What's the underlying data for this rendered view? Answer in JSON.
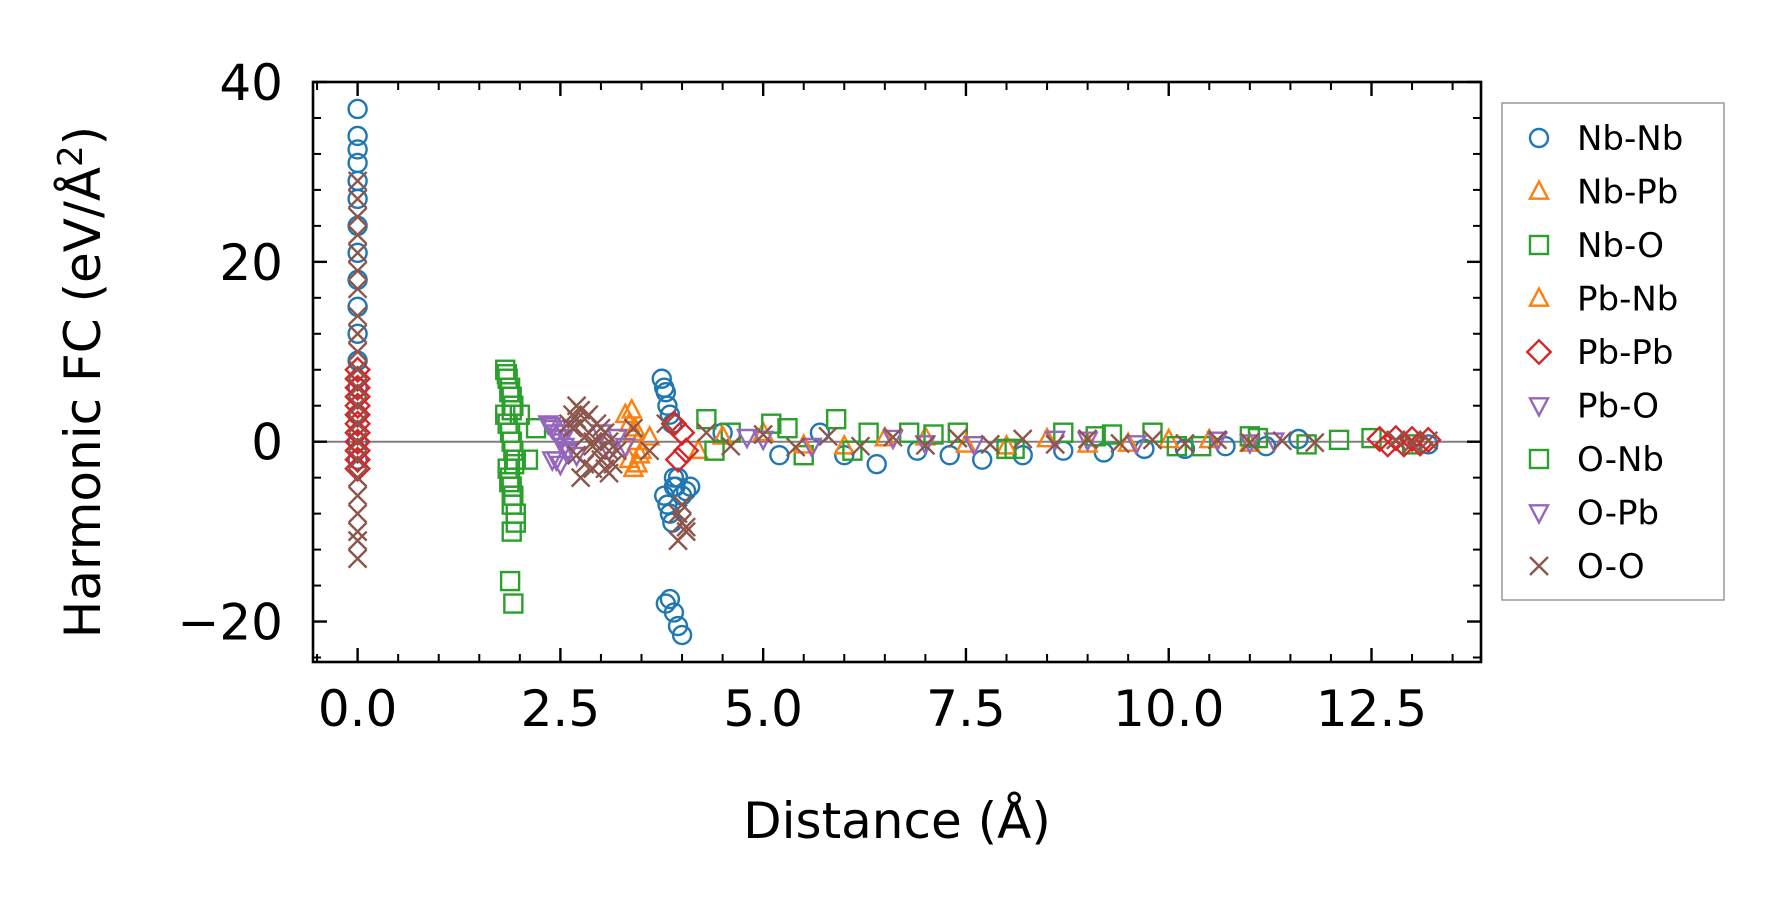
{
  "chart_data": {
    "type": "scatter",
    "title": "",
    "xlabel": "Distance (Å)",
    "ylabel": "Harmonic FC (eV/Å²)",
    "ylabel_base": "Harmonic FC (eV/Å",
    "ylabel_sup": "2",
    "ylabel_close": ")",
    "xlim": [
      -0.55,
      13.85
    ],
    "ylim": [
      -24.5,
      40.0
    ],
    "x_ticks": [
      0.0,
      2.5,
      5.0,
      7.5,
      10.0,
      12.5
    ],
    "x_tick_labels": [
      "0.0",
      "2.5",
      "5.0",
      "7.5",
      "10.0",
      "12.5"
    ],
    "y_ticks": [
      -20,
      0,
      20,
      40
    ],
    "y_tick_labels": [
      "−20",
      "0",
      "20",
      "40"
    ],
    "zero_line": true,
    "grid": false,
    "legend_position": "outside-right",
    "series": [
      {
        "name": "Nb-Nb",
        "marker": "circle",
        "color": "#1f77b4",
        "filled": false,
        "x": [
          0,
          0,
          0,
          0,
          0,
          0,
          0,
          0,
          0,
          0,
          0,
          0,
          0,
          0,
          0,
          0,
          3.75,
          3.78,
          3.8,
          3.82,
          3.85,
          3.88,
          3.9,
          3.92,
          3.78,
          3.82,
          3.85,
          3.88,
          3.9,
          3.95,
          4.0,
          4.05,
          4.1,
          3.8,
          3.85,
          3.9,
          3.95,
          4.0,
          4.5,
          5.2,
          5.7,
          6.0,
          6.4,
          6.9,
          7.3,
          7.7,
          8.2,
          8.7,
          9.2,
          9.7,
          10.2,
          10.7,
          11.2,
          11.6,
          13.2
        ],
        "y": [
          37,
          34,
          32.5,
          31,
          29,
          27,
          24,
          21,
          18,
          15,
          12,
          9,
          6,
          3,
          0,
          -2,
          7,
          6,
          5.5,
          4,
          3,
          2,
          -4,
          -5,
          -6,
          -7,
          -8,
          -9,
          -5,
          -4,
          -6,
          -5.5,
          -5,
          -18,
          -17.5,
          -19,
          -20.5,
          -21.5,
          1,
          -1.5,
          1,
          -1.5,
          -2.5,
          -1,
          -1.5,
          -2,
          -1.5,
          -1,
          -1.2,
          -0.8,
          -0.8,
          -0.5,
          -0.5,
          0.3,
          -0.3
        ]
      },
      {
        "name": "Nb-Pb",
        "marker": "triangle-up",
        "color": "#ff7f0e",
        "filled": false,
        "x": [
          3.3,
          3.35,
          3.4,
          3.45,
          3.5,
          3.35,
          3.4,
          3.45,
          3.6,
          4.2,
          5.0,
          6.0,
          7.0,
          8.0,
          9.0,
          10.0,
          11.0
        ],
        "y": [
          3,
          2,
          1,
          0,
          -1,
          -2,
          -3,
          -2.5,
          0.5,
          -1,
          1,
          -0.5,
          0.5,
          -0.5,
          -0.3,
          0.2,
          -0.2
        ]
      },
      {
        "name": "Nb-O",
        "marker": "square",
        "color": "#2ca02c",
        "filled": false,
        "x": [
          1.82,
          1.85,
          1.88,
          1.9,
          1.92,
          1.82,
          1.85,
          1.88,
          1.9,
          1.92,
          1.95,
          1.85,
          1.88,
          1.9,
          1.92,
          1.95,
          1.9,
          1.95,
          1.88,
          1.92,
          2.0,
          2.1,
          2.2,
          4.3,
          4.6,
          5.1,
          5.5,
          5.9,
          6.3,
          6.8,
          7.4,
          8.0,
          8.7,
          9.3,
          9.8,
          10.4,
          11.0,
          11.7,
          12.5,
          13.0
        ],
        "y": [
          8,
          7,
          6,
          5,
          4,
          3,
          2,
          1,
          0,
          -1,
          -2,
          -3,
          -4,
          -5,
          -6,
          -8,
          -10,
          -9,
          -15.5,
          -18,
          3,
          -2,
          1.5,
          2.5,
          1,
          2,
          -1.5,
          2.5,
          1,
          1,
          1,
          -0.8,
          1,
          0.8,
          1,
          -0.5,
          0.6,
          -0.3,
          0.4,
          -0.3
        ]
      },
      {
        "name": "Pb-Nb",
        "marker": "triangle-up",
        "color": "#ff7f0e",
        "filled": false,
        "x": [
          3.38,
          3.42,
          3.48,
          4.5,
          5.5,
          6.5,
          7.5,
          8.5,
          9.5,
          10.5
        ],
        "y": [
          3.5,
          1.5,
          -1.5,
          0.6,
          -0.4,
          0.4,
          -0.3,
          0.3,
          -0.2,
          0.2
        ]
      },
      {
        "name": "Pb-Pb",
        "marker": "diamond",
        "color": "#d62728",
        "filled": false,
        "x": [
          0,
          0,
          0,
          0,
          0,
          0,
          0,
          0,
          0,
          0,
          0,
          0,
          3.9,
          3.95,
          4.0,
          4.05,
          12.6,
          12.8,
          13.0,
          13.2,
          12.7,
          12.9,
          13.1
        ],
        "y": [
          8,
          7,
          6,
          5,
          4,
          3,
          2,
          1,
          0,
          -1,
          -2,
          -3,
          2,
          -2,
          1,
          -1,
          0.3,
          0.4,
          0.3,
          0.2,
          -0.3,
          -0.3,
          -0.2
        ]
      },
      {
        "name": "Pb-O",
        "marker": "triangle-down",
        "color": "#9467bd",
        "filled": false,
        "x": [
          2.35,
          2.4,
          2.45,
          2.5,
          2.55,
          2.6,
          2.4,
          2.5,
          2.6,
          2.7,
          3.0,
          3.1,
          3.2,
          3.3,
          4.8,
          5.6,
          6.6,
          7.6,
          8.6,
          9.6,
          10.6,
          11.3
        ],
        "y": [
          2,
          1.5,
          1,
          0,
          -0.5,
          -1,
          -2,
          -2.5,
          1.5,
          -1.5,
          1,
          -1,
          0.5,
          -0.5,
          0.5,
          -0.5,
          0.4,
          -0.3,
          0.3,
          -0.2,
          0.2,
          0.1
        ]
      },
      {
        "name": "O-Nb",
        "marker": "square",
        "color": "#2ca02c",
        "filled": false,
        "x": [
          1.84,
          1.87,
          1.9,
          1.93,
          1.87,
          1.9,
          4.4,
          5.3,
          6.1,
          7.1,
          8.1,
          9.1,
          10.1,
          11.1,
          12.1
        ],
        "y": [
          7.5,
          5.5,
          3.5,
          -2.5,
          -4.5,
          -7,
          -1,
          1.5,
          -1,
          0.8,
          -0.8,
          0.6,
          -0.5,
          0.4,
          0.2
        ]
      },
      {
        "name": "O-Pb",
        "marker": "triangle-down",
        "color": "#9467bd",
        "filled": false,
        "x": [
          2.38,
          2.48,
          2.58,
          2.45,
          2.55,
          5.0,
          7.0,
          9.0,
          11.0
        ],
        "y": [
          1.8,
          0.5,
          -1.2,
          -2,
          1,
          0.3,
          -0.2,
          0.2,
          -0.1
        ]
      },
      {
        "name": "O-O",
        "marker": "x",
        "color": "#8c564b",
        "filled": false,
        "x": [
          0,
          0,
          0,
          0,
          0,
          0,
          0,
          0,
          0,
          0,
          0,
          0,
          0,
          0,
          0,
          0,
          0,
          0,
          0,
          0,
          0,
          0,
          2.6,
          2.65,
          2.7,
          2.75,
          2.8,
          2.85,
          2.9,
          2.95,
          3.0,
          3.05,
          3.1,
          3.15,
          3.2,
          2.65,
          2.7,
          2.75,
          2.8,
          2.85,
          2.9,
          2.95,
          3.0,
          3.05,
          3.1,
          2.7,
          2.8,
          2.9,
          3.0,
          3.1,
          3.4,
          3.6,
          3.8,
          3.95,
          4.0,
          4.05,
          3.95,
          4.0,
          4.05,
          4.3,
          4.6,
          5.0,
          5.4,
          5.8,
          6.2,
          6.6,
          7.0,
          7.4,
          7.8,
          8.2,
          8.6,
          9.0,
          9.4,
          9.8,
          10.2,
          10.6,
          11.0,
          11.4,
          11.8,
          12.8,
          13.0,
          13.2
        ],
        "y": [
          29,
          27,
          25,
          23,
          21,
          19,
          17,
          14,
          12,
          10,
          8,
          6,
          4,
          2,
          0,
          -2,
          -4,
          -6,
          -8,
          -10,
          -11,
          -13,
          2,
          3,
          4,
          3.5,
          2.5,
          1,
          0,
          -1,
          -2,
          -3,
          -3.5,
          -2.5,
          -1,
          1.5,
          -1.5,
          -4,
          0.5,
          3,
          -3,
          2,
          -2,
          1,
          0,
          2.5,
          -2.5,
          -0.5,
          1.5,
          -1,
          1.5,
          -1,
          2,
          -8,
          -9,
          -10,
          -11,
          -7,
          -9.5,
          1,
          -0.5,
          0.8,
          -0.6,
          0.6,
          -0.5,
          0.5,
          -0.4,
          0.4,
          -0.3,
          0.3,
          -0.3,
          0.3,
          -0.2,
          0.2,
          -0.2,
          0.2,
          -0.1,
          0.1,
          -0.1,
          0.2,
          -0.2,
          0.1
        ]
      }
    ]
  }
}
